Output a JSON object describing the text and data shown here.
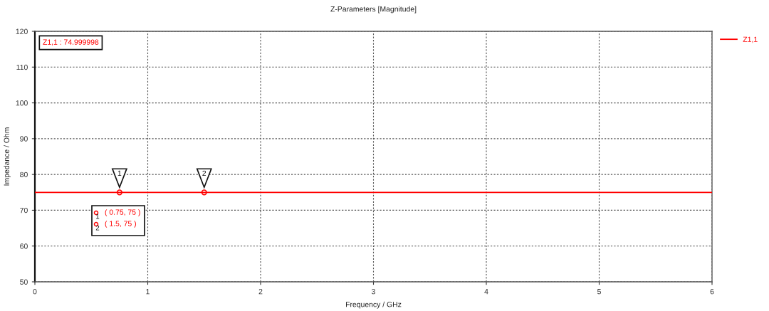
{
  "chart_data": {
    "type": "line",
    "title": "Z-Parameters [Magnitude]",
    "xlabel": "Frequency / GHz",
    "ylabel": "Impedance / Ohm",
    "series": [
      {
        "name": "Z1,1",
        "color": "#ff0000",
        "x": [
          0,
          6
        ],
        "values": [
          75,
          75
        ],
        "marker": "none"
      },
      {
        "type": "scatter",
        "color": "#ff0000",
        "x": [
          0.75,
          1.5
        ],
        "values": [
          75,
          75
        ],
        "marker": "circle"
      }
    ],
    "annotations": [
      {
        "text": "1",
        "x": 0.75,
        "y": 75
      },
      {
        "text": "2",
        "x": 1.5,
        "y": 75
      },
      "( 0.75, 75 )",
      "( 1.5, 75 )",
      "Z1,1 : 74.999998"
    ],
    "xlim": [
      0,
      6
    ],
    "xticks": [
      0,
      1,
      2,
      3,
      4,
      5,
      6
    ],
    "ylim": [
      50,
      120
    ],
    "yticks": [
      50,
      60,
      70,
      80,
      90,
      100,
      110,
      120
    ],
    "grid": true,
    "legend": "top right",
    "line_style": "solid"
  }
}
